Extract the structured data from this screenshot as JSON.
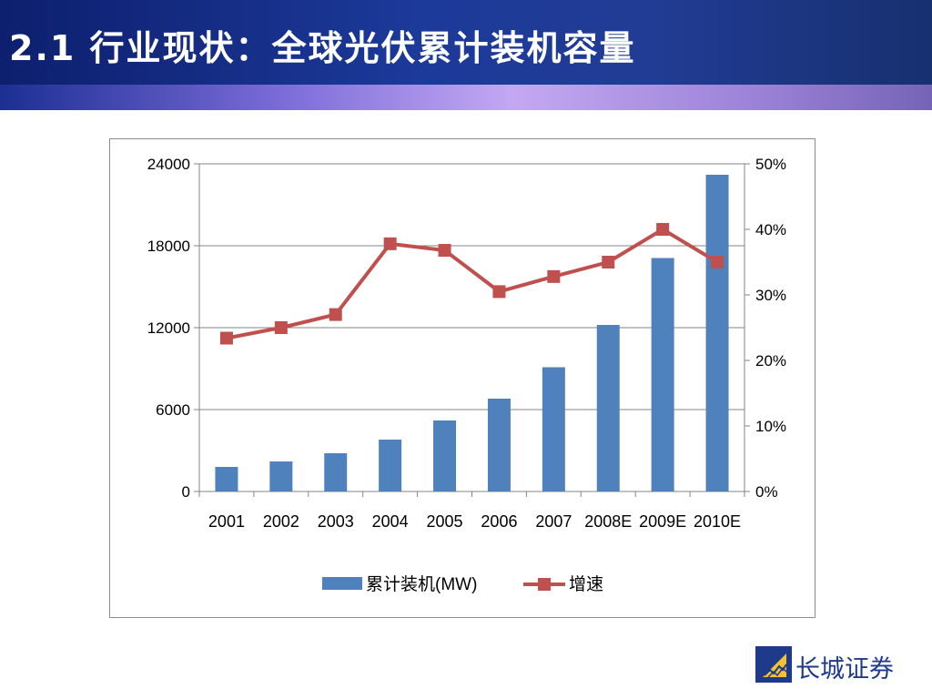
{
  "header": {
    "title": "2.1 行业现状：全球光伏累计装机容量"
  },
  "colors": {
    "bar": "#4f81bd",
    "line": "#c0504d",
    "header": "#1c3a9a",
    "logo": "#1f3a8a"
  },
  "chart_data": {
    "type": "bar",
    "categories": [
      "2001",
      "2002",
      "2003",
      "2004",
      "2005",
      "2006",
      "2007",
      "2008E",
      "2009E",
      "2010E"
    ],
    "series": [
      {
        "name": "累计装机(MW)",
        "type": "bar",
        "axis": "left",
        "values": [
          1800,
          2200,
          2800,
          3800,
          5200,
          6800,
          9100,
          12200,
          17100,
          23200
        ]
      },
      {
        "name": "增速",
        "type": "line",
        "axis": "right",
        "values": [
          0.234,
          0.25,
          0.27,
          0.378,
          0.368,
          0.305,
          0.328,
          0.35,
          0.4,
          0.35
        ]
      }
    ],
    "y_left": {
      "min": 0,
      "max": 24000,
      "ticks": [
        0,
        6000,
        12000,
        18000,
        24000
      ],
      "tick_labels": [
        "0",
        "6000",
        "12000",
        "18000",
        "24000"
      ]
    },
    "y_right": {
      "min": 0,
      "max": 0.5,
      "ticks": [
        0,
        0.1,
        0.2,
        0.3,
        0.4,
        0.5
      ],
      "tick_labels": [
        "0%",
        "10%",
        "20%",
        "30%",
        "40%",
        "50%"
      ]
    },
    "grid": true,
    "legend": {
      "placement": "bottom",
      "entries": [
        "累计装机(MW)",
        "增速"
      ]
    }
  },
  "logo": {
    "text": "长城证券",
    "icon": "great-wall-logo-icon"
  }
}
